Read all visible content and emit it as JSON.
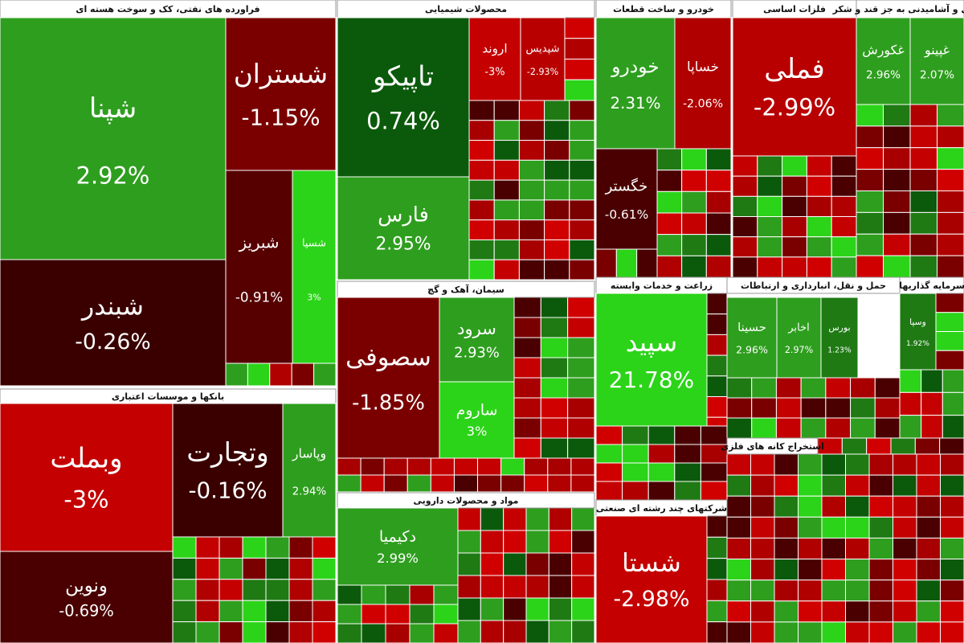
{
  "chart_data": {
    "type": "treemap",
    "sectors": [
      {
        "name": "فراورده های نفتی، کک و سوخت هسته ای",
        "tiles": [
          {
            "name": "شپنا",
            "value": 2.92,
            "value_label": "2.92%",
            "color": "#2e9e1e"
          },
          {
            "name": "شستران",
            "value": -1.15,
            "value_label": "-1.15%",
            "color": "#7a0000"
          },
          {
            "name": "شبندر",
            "value": -0.26,
            "value_label": "-0.26%",
            "color": "#3a0000"
          },
          {
            "name": "شبریز",
            "value": -0.91,
            "value_label": "-0.91%",
            "color": "#560000"
          },
          {
            "name": "شسپا",
            "value": 3,
            "value_label": "3%",
            "color": "#2bd418"
          }
        ]
      },
      {
        "name": "بانکها و موسسات اعتباری",
        "tiles": [
          {
            "name": "وبملت",
            "value": -3,
            "value_label": "-3%",
            "color": "#c40000"
          },
          {
            "name": "وتجارت",
            "value": -0.16,
            "value_label": "-0.16%",
            "color": "#3a0000"
          },
          {
            "name": "وپاسار",
            "value": 2.94,
            "value_label": "2.94%",
            "color": "#2e9e1e"
          },
          {
            "name": "ونوین",
            "value": -0.69,
            "value_label": "-0.69%",
            "color": "#4a0000"
          }
        ]
      },
      {
        "name": "محصولات شیمیایی",
        "tiles": [
          {
            "name": "تاپیکو",
            "value": 0.74,
            "value_label": "0.74%",
            "color": "#0b5a0b"
          },
          {
            "name": "فارس",
            "value": 2.95,
            "value_label": "2.95%",
            "color": "#2e9e1e"
          },
          {
            "name": "اروند",
            "value": -3,
            "value_label": "-3%",
            "color": "#c40000"
          },
          {
            "name": "شپدیس",
            "value": -2.93,
            "value_label": "-2.93%",
            "color": "#b80000"
          }
        ]
      },
      {
        "name": "سیمان، آهک و گچ",
        "tiles": [
          {
            "name": "سصوفی",
            "value": -1.85,
            "value_label": "-1.85%",
            "color": "#7a0000"
          },
          {
            "name": "سرود",
            "value": 2.93,
            "value_label": "2.93%",
            "color": "#2e9e1e"
          },
          {
            "name": "ساروم",
            "value": 3,
            "value_label": "3%",
            "color": "#2bd418"
          }
        ]
      },
      {
        "name": "مواد و محصولات دارویی",
        "tiles": [
          {
            "name": "دکیمیا",
            "value": 2.99,
            "value_label": "2.99%",
            "color": "#2e9e1e"
          }
        ]
      },
      {
        "name": "خودرو و ساخت قطعات",
        "tiles": [
          {
            "name": "خودرو",
            "value": 2.31,
            "value_label": "2.31%",
            "color": "#2e9e1e"
          },
          {
            "name": "خساپا",
            "value": -2.06,
            "value_label": "-2.06%",
            "color": "#b00000"
          },
          {
            "name": "خگستر",
            "value": -0.61,
            "value_label": "-0.61%",
            "color": "#4a0000"
          }
        ]
      },
      {
        "name": "فلزات اساسی",
        "tiles": [
          {
            "name": "فملی",
            "value": -2.99,
            "value_label": "-2.99%",
            "color": "#b80000"
          }
        ]
      },
      {
        "name": "غذایی و آشامیدنی به جز قند و شکر",
        "tiles": [
          {
            "name": "غکورش",
            "value": 2.96,
            "value_label": "2.96%",
            "color": "#2e9e1e"
          },
          {
            "name": "غپینو",
            "value": 2.07,
            "value_label": "2.07%",
            "color": "#2e9e1e"
          }
        ]
      },
      {
        "name": "زراعت و خدمات وابسته",
        "tiles": [
          {
            "name": "سپید",
            "value": 21.78,
            "value_label": "21.78%",
            "color": "#2bd418"
          }
        ]
      },
      {
        "name": "حمل و نقل، انبارداری و ارتباطات",
        "tiles": [
          {
            "name": "حسینا",
            "value": 2.96,
            "value_label": "2.96%",
            "color": "#2e9e1e"
          },
          {
            "name": "اخابر",
            "value": 2.97,
            "value_label": "2.97%",
            "color": "#2e9e1e"
          },
          {
            "name": "بورس",
            "value": 1.23,
            "value_label": "1.23%",
            "color": "#1f7a14"
          }
        ]
      },
      {
        "name": "سرمایه گذاریها",
        "tiles": [
          {
            "name": "وسپا",
            "value": 1.92,
            "value_label": "1.92%",
            "color": "#1f7a14"
          }
        ]
      },
      {
        "name": "شرکتهای چند رشته ای صنعتی",
        "tiles": [
          {
            "name": "شستا",
            "value": -2.98,
            "value_label": "-2.98%",
            "color": "#c40000"
          }
        ]
      },
      {
        "name": "استخراج کانه های فلزی",
        "tiles": []
      }
    ]
  }
}
